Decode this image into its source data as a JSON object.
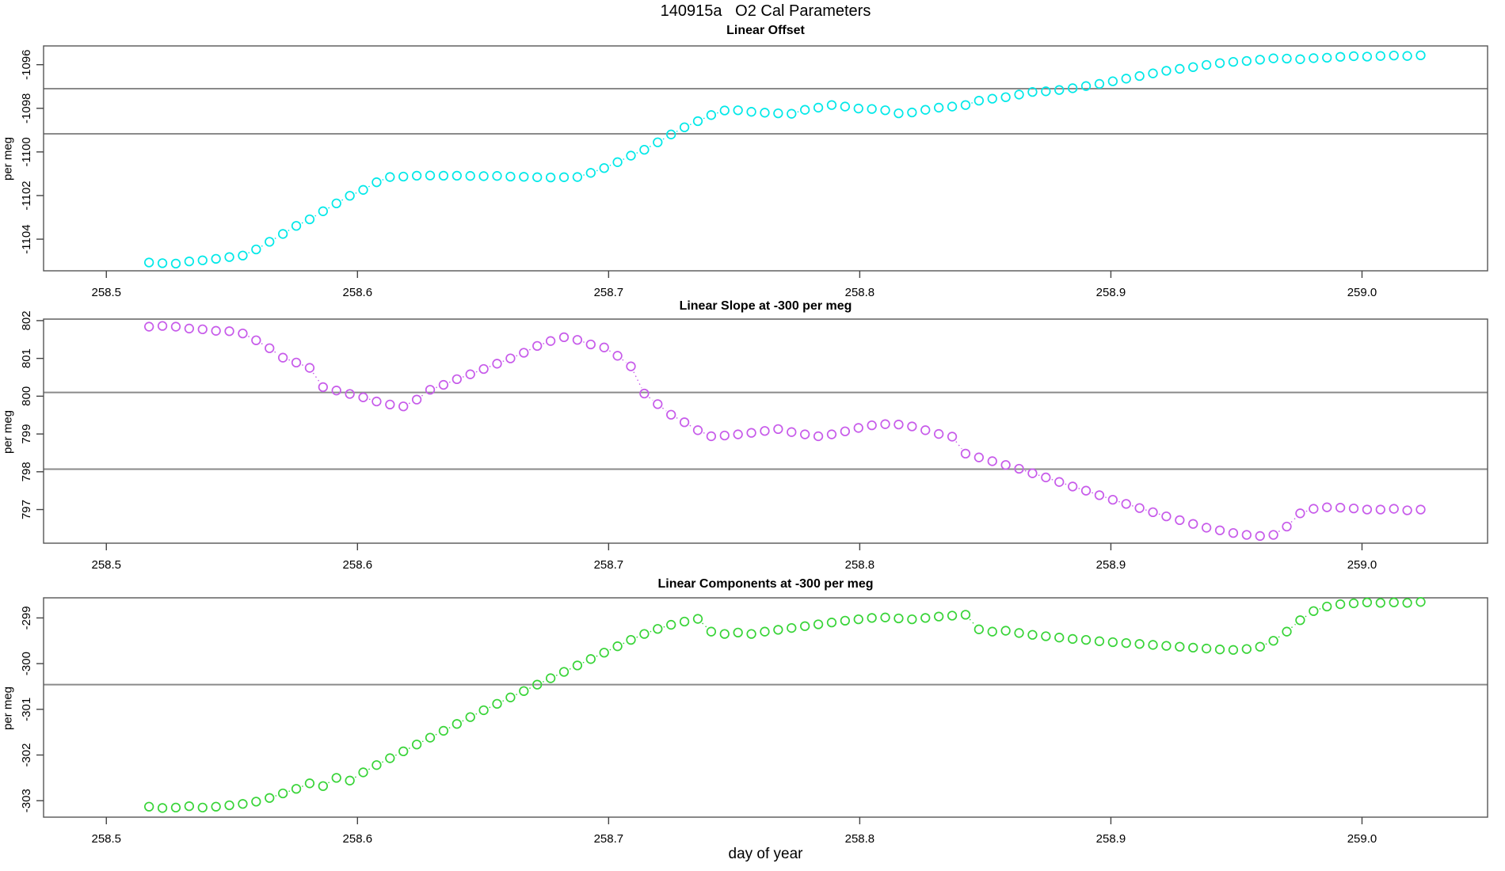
{
  "header": {
    "title": "140915a   O2 Cal Parameters"
  },
  "footer": {
    "xlabel": "day of year"
  },
  "axis": {
    "xlim": [
      258.475,
      259.05
    ],
    "x_ticks": [
      258.5,
      258.6,
      258.7,
      258.8,
      258.9,
      259.0
    ],
    "x_tick_labels": [
      "258.5",
      "258.6",
      "258.7",
      "258.8",
      "258.9",
      "259.0"
    ]
  },
  "chart_data": [
    {
      "type": "scatter",
      "title": "Linear Offset",
      "ylabel": "per meg",
      "color": "#00E8E8",
      "point_style": "open-circle",
      "line_style": "dotted",
      "x_start": 258.517,
      "x_step": 0.00533,
      "ylim": [
        -1105.45,
        -1095.14
      ],
      "y_ticks": [
        -1104,
        -1102,
        -1100,
        -1098,
        -1096
      ],
      "hlines": [
        -1097.1,
        -1099.17
      ],
      "values": [
        -1105.07,
        -1105.1,
        -1105.12,
        -1105.02,
        -1104.97,
        -1104.9,
        -1104.82,
        -1104.75,
        -1104.47,
        -1104.12,
        -1103.76,
        -1103.39,
        -1103.09,
        -1102.72,
        -1102.36,
        -1102.01,
        -1101.74,
        -1101.39,
        -1101.15,
        -1101.13,
        -1101.09,
        -1101.08,
        -1101.09,
        -1101.09,
        -1101.1,
        -1101.11,
        -1101.1,
        -1101.13,
        -1101.14,
        -1101.16,
        -1101.17,
        -1101.16,
        -1101.15,
        -1100.96,
        -1100.74,
        -1100.47,
        -1100.17,
        -1099.9,
        -1099.56,
        -1099.2,
        -1098.87,
        -1098.59,
        -1098.31,
        -1098.1,
        -1098.09,
        -1098.16,
        -1098.2,
        -1098.23,
        -1098.25,
        -1098.07,
        -1097.97,
        -1097.85,
        -1097.92,
        -1098.01,
        -1098.03,
        -1098.09,
        -1098.23,
        -1098.19,
        -1098.07,
        -1097.97,
        -1097.92,
        -1097.85,
        -1097.65,
        -1097.56,
        -1097.49,
        -1097.37,
        -1097.25,
        -1097.22,
        -1097.16,
        -1097.08,
        -1096.98,
        -1096.88,
        -1096.76,
        -1096.64,
        -1096.52,
        -1096.4,
        -1096.28,
        -1096.19,
        -1096.11,
        -1096.01,
        -1095.93,
        -1095.87,
        -1095.83,
        -1095.77,
        -1095.71,
        -1095.72,
        -1095.75,
        -1095.7,
        -1095.68,
        -1095.64,
        -1095.61,
        -1095.63,
        -1095.6,
        -1095.58,
        -1095.6,
        -1095.57
      ]
    },
    {
      "type": "scatter",
      "title": "Linear Slope at -300 per meg",
      "ylabel": "per meg",
      "color": "#C75BEA",
      "point_style": "open-circle",
      "line_style": "dotted",
      "x_start": 258.517,
      "x_step": 0.00533,
      "ylim": [
        796.11,
        802.04
      ],
      "y_ticks": [
        797,
        798,
        799,
        800,
        801,
        802
      ],
      "hlines": [
        800.1,
        798.07
      ],
      "values": [
        801.84,
        801.86,
        801.84,
        801.79,
        801.77,
        801.73,
        801.72,
        801.66,
        801.48,
        801.27,
        801.02,
        800.89,
        800.75,
        800.24,
        800.15,
        800.06,
        799.97,
        799.86,
        799.78,
        799.73,
        799.91,
        800.17,
        800.3,
        800.45,
        800.58,
        800.72,
        800.86,
        801.0,
        801.15,
        801.33,
        801.46,
        801.56,
        801.49,
        801.37,
        801.29,
        801.07,
        800.79,
        800.07,
        799.79,
        799.51,
        799.31,
        799.1,
        798.94,
        798.96,
        798.99,
        799.03,
        799.08,
        799.13,
        799.05,
        798.99,
        798.94,
        798.99,
        799.07,
        799.16,
        799.23,
        799.26,
        799.25,
        799.2,
        799.1,
        799.0,
        798.93,
        798.48,
        798.38,
        798.28,
        798.18,
        798.08,
        797.96,
        797.85,
        797.73,
        797.61,
        797.5,
        797.38,
        797.26,
        797.15,
        797.04,
        796.93,
        796.82,
        796.72,
        796.62,
        796.52,
        796.45,
        796.38,
        796.33,
        796.3,
        796.33,
        796.55,
        796.9,
        797.02,
        797.06,
        797.05,
        797.03,
        797.0,
        797.0,
        797.02,
        796.98,
        797.0
      ]
    },
    {
      "type": "scatter",
      "title": "Linear Components at -300 per meg",
      "ylabel": "per meg",
      "color": "#38D438",
      "point_style": "open-circle",
      "line_style": "dotted",
      "x_start": 258.517,
      "x_step": 0.00533,
      "ylim": [
        -303.36,
        -298.56
      ],
      "y_ticks": [
        -303,
        -302,
        -301,
        -300,
        -299
      ],
      "hlines": [
        -300.46
      ],
      "values": [
        -303.13,
        -303.16,
        -303.15,
        -303.12,
        -303.15,
        -303.13,
        -303.1,
        -303.07,
        -303.02,
        -302.94,
        -302.84,
        -302.74,
        -302.62,
        -302.68,
        -302.5,
        -302.56,
        -302.38,
        -302.22,
        -302.07,
        -301.92,
        -301.77,
        -301.62,
        -301.47,
        -301.32,
        -301.17,
        -301.02,
        -300.88,
        -300.74,
        -300.6,
        -300.46,
        -300.32,
        -300.18,
        -300.04,
        -299.9,
        -299.76,
        -299.62,
        -299.48,
        -299.35,
        -299.24,
        -299.15,
        -299.08,
        -299.02,
        -299.3,
        -299.35,
        -299.32,
        -299.35,
        -299.3,
        -299.26,
        -299.22,
        -299.18,
        -299.14,
        -299.1,
        -299.06,
        -299.03,
        -299.0,
        -298.99,
        -299.01,
        -299.03,
        -299.0,
        -298.97,
        -298.95,
        -298.93,
        -299.25,
        -299.3,
        -299.28,
        -299.33,
        -299.37,
        -299.4,
        -299.43,
        -299.46,
        -299.48,
        -299.51,
        -299.53,
        -299.55,
        -299.57,
        -299.59,
        -299.61,
        -299.63,
        -299.65,
        -299.67,
        -299.69,
        -299.7,
        -299.68,
        -299.63,
        -299.5,
        -299.3,
        -299.05,
        -298.85,
        -298.75,
        -298.7,
        -298.68,
        -298.66,
        -298.67,
        -298.66,
        -298.67,
        -298.65
      ]
    }
  ]
}
